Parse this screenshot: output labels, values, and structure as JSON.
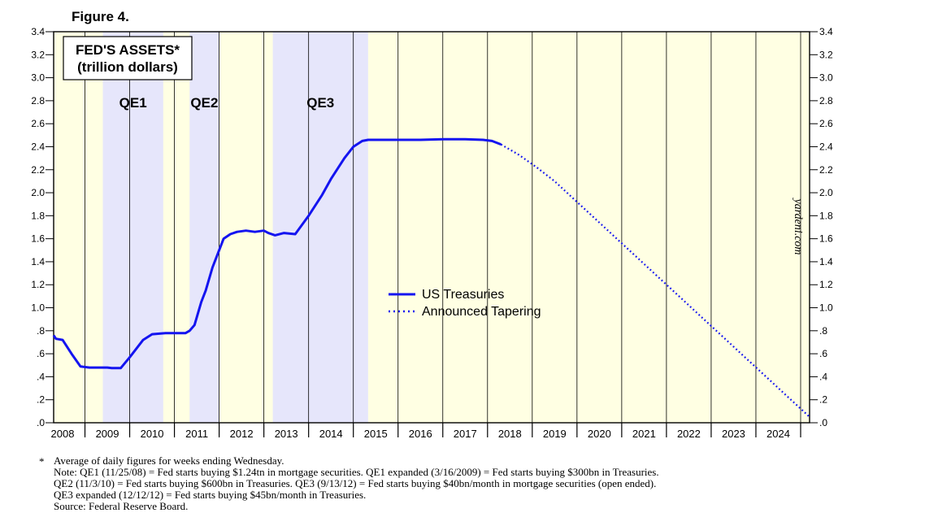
{
  "figure_label": "Figure 4.",
  "chart_data": {
    "type": "line",
    "title": "FED'S ASSETS*",
    "subtitle": "(trillion dollars)",
    "y_unit": "trillion dollars",
    "ylim": [
      0,
      3.4
    ],
    "xlim": [
      2007.8,
      2024.7
    ],
    "y_ticks": [
      0,
      0.2,
      0.4,
      0.6,
      0.8,
      1.0,
      1.2,
      1.4,
      1.6,
      1.8,
      2.0,
      2.2,
      2.4,
      2.6,
      2.8,
      3.0,
      3.2,
      3.4
    ],
    "y_tick_labels": [
      ".0",
      ".2",
      ".4",
      ".6",
      ".8",
      "1.0",
      "1.2",
      "1.4",
      "1.6",
      "1.8",
      "2.0",
      "2.2",
      "2.4",
      "2.6",
      "2.8",
      "3.0",
      "3.2",
      "3.4"
    ],
    "x_tick_labels": [
      "2008",
      "2009",
      "2010",
      "2011",
      "2012",
      "2013",
      "2014",
      "2015",
      "2016",
      "2017",
      "2018",
      "2019",
      "2020",
      "2021",
      "2022",
      "2023",
      "2024"
    ],
    "regions": [
      {
        "label": "QE1",
        "start": 2008.9,
        "end": 2010.25
      },
      {
        "label": "QE2",
        "start": 2010.84,
        "end": 2011.5
      },
      {
        "label": "QE3",
        "start": 2012.7,
        "end": 2014.83
      }
    ],
    "series": [
      {
        "name": "US Treasuries",
        "style": "solid",
        "color": "#1414f0",
        "x": [
          2007.8,
          2007.85,
          2008.0,
          2008.2,
          2008.4,
          2008.6,
          2009.0,
          2009.1,
          2009.3,
          2009.5,
          2009.6,
          2009.8,
          2010.0,
          2010.3,
          2010.5,
          2010.65,
          2010.75,
          2010.84,
          2010.95,
          2011.1,
          2011.2,
          2011.35,
          2011.5,
          2011.6,
          2011.75,
          2011.9,
          2012.1,
          2012.3,
          2012.5,
          2012.6,
          2012.75,
          2012.95,
          2013.2,
          2013.5,
          2013.8,
          2014.0,
          2014.3,
          2014.5,
          2014.7,
          2014.83,
          2015.0,
          2015.5,
          2016.0,
          2016.5,
          2017.0,
          2017.4,
          2017.6,
          2017.8
        ],
        "values": [
          0.76,
          0.73,
          0.72,
          0.6,
          0.49,
          0.48,
          0.48,
          0.475,
          0.475,
          0.57,
          0.62,
          0.72,
          0.77,
          0.78,
          0.78,
          0.78,
          0.78,
          0.8,
          0.85,
          1.05,
          1.15,
          1.35,
          1.5,
          1.6,
          1.64,
          1.66,
          1.67,
          1.66,
          1.67,
          1.65,
          1.63,
          1.65,
          1.64,
          1.8,
          1.98,
          2.12,
          2.3,
          2.4,
          2.45,
          2.46,
          2.46,
          2.46,
          2.46,
          2.465,
          2.465,
          2.46,
          2.45,
          2.42
        ]
      },
      {
        "name": "Announced Tapering",
        "style": "dotted",
        "color": "#1414f0",
        "x": [
          2017.8,
          2018.2,
          2018.6,
          2019.0,
          2024.7
        ],
        "values": [
          2.42,
          2.33,
          2.22,
          2.1,
          0.05
        ]
      }
    ],
    "legend": [
      "US Treasuries",
      "Announced Tapering"
    ],
    "credit": "yardeni.com"
  },
  "notes": {
    "marker": "*",
    "lines": [
      "Average of daily figures for weeks ending Wednesday.",
      "Note: QE1 (11/25/08) = Fed starts buying $1.24tn in mortgage securities. QE1 expanded (3/16/2009) = Fed starts buying $300bn in Treasuries.",
      "QE2 (11/3/10) = Fed starts buying $600bn in Treasuries. QE3 (9/13/12) = Fed starts buying $40bn/month in mortgage securities (open ended).",
      "QE3 expanded (12/12/12) = Fed starts buying $45bn/month in Treasuries.",
      "Source: Federal Reserve Board."
    ]
  },
  "colors": {
    "plot_background": "#ffffe3",
    "qe_shade": "#e6e6fb",
    "line": "#1414f0"
  }
}
